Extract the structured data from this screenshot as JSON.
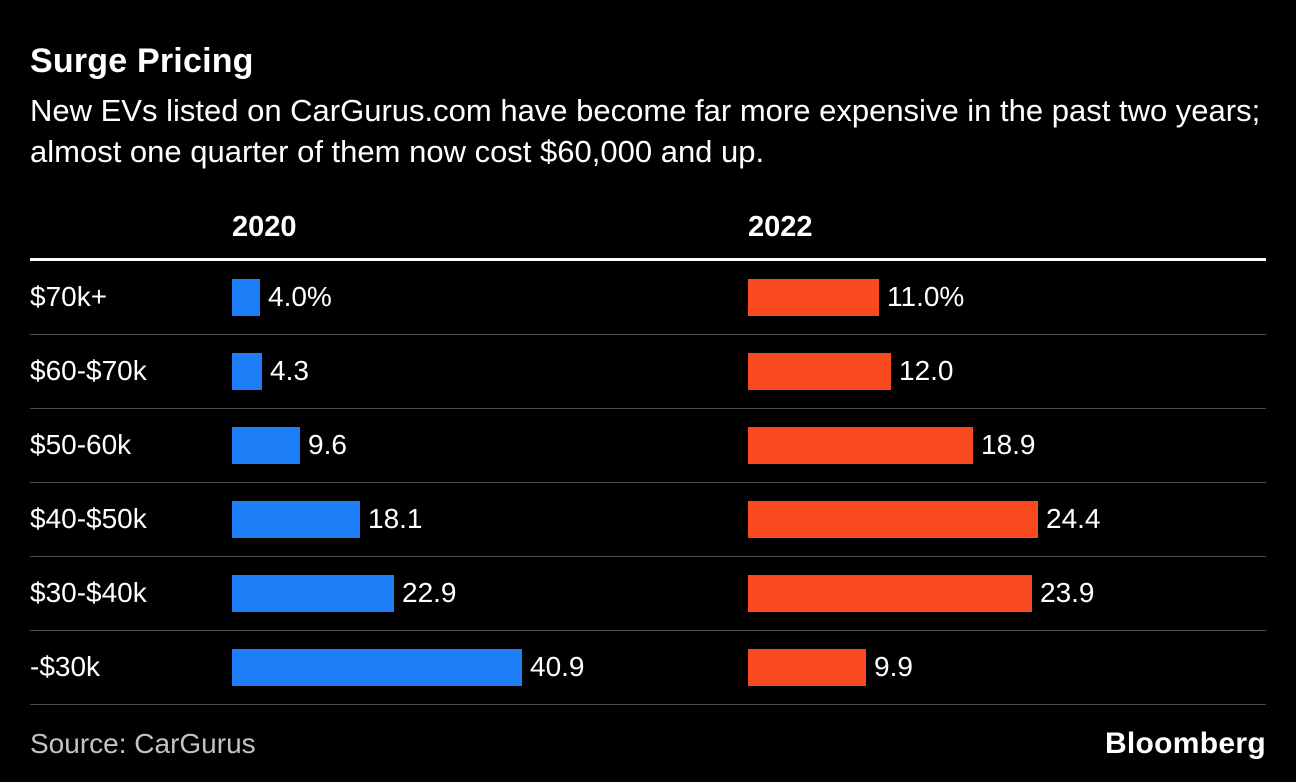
{
  "header": {
    "title": "Surge Pricing",
    "subtitle": "New EVs listed on CarGurus.com have become far more expensive in the past two years; almost one quarter of them now cost $60,000 and up."
  },
  "chart_data": {
    "type": "bar",
    "orientation": "horizontal",
    "title": "Surge Pricing",
    "subtitle": "New EVs listed on CarGurus.com have become far more expensive in the past two years; almost one quarter of them now cost $60,000 and up.",
    "categories": [
      "$70k+",
      "$60-$70k",
      "$50-60k",
      "$40-$50k",
      "$30-$40k",
      "-$30k"
    ],
    "series": [
      {
        "name": "2020",
        "color": "#1e7ef7",
        "values": [
          4.0,
          4.3,
          9.6,
          18.1,
          22.9,
          40.9
        ],
        "labels": [
          "4.0%",
          "4.3",
          "9.6",
          "18.1",
          "22.9",
          "40.9"
        ]
      },
      {
        "name": "2022",
        "color": "#f9491f",
        "values": [
          11.0,
          12.0,
          18.9,
          24.4,
          23.9,
          9.9
        ],
        "labels": [
          "11.0%",
          "12.0",
          "18.9",
          "24.4",
          "23.9",
          "9.9"
        ]
      }
    ],
    "value_unit": "%",
    "xlabel": "",
    "ylabel": "",
    "legend_position": "column-headers",
    "grid": "row-separators",
    "background": "#000000",
    "text_color": "#ffffff"
  },
  "footer": {
    "source": "Source: CarGurus",
    "brand": "Bloomberg"
  }
}
